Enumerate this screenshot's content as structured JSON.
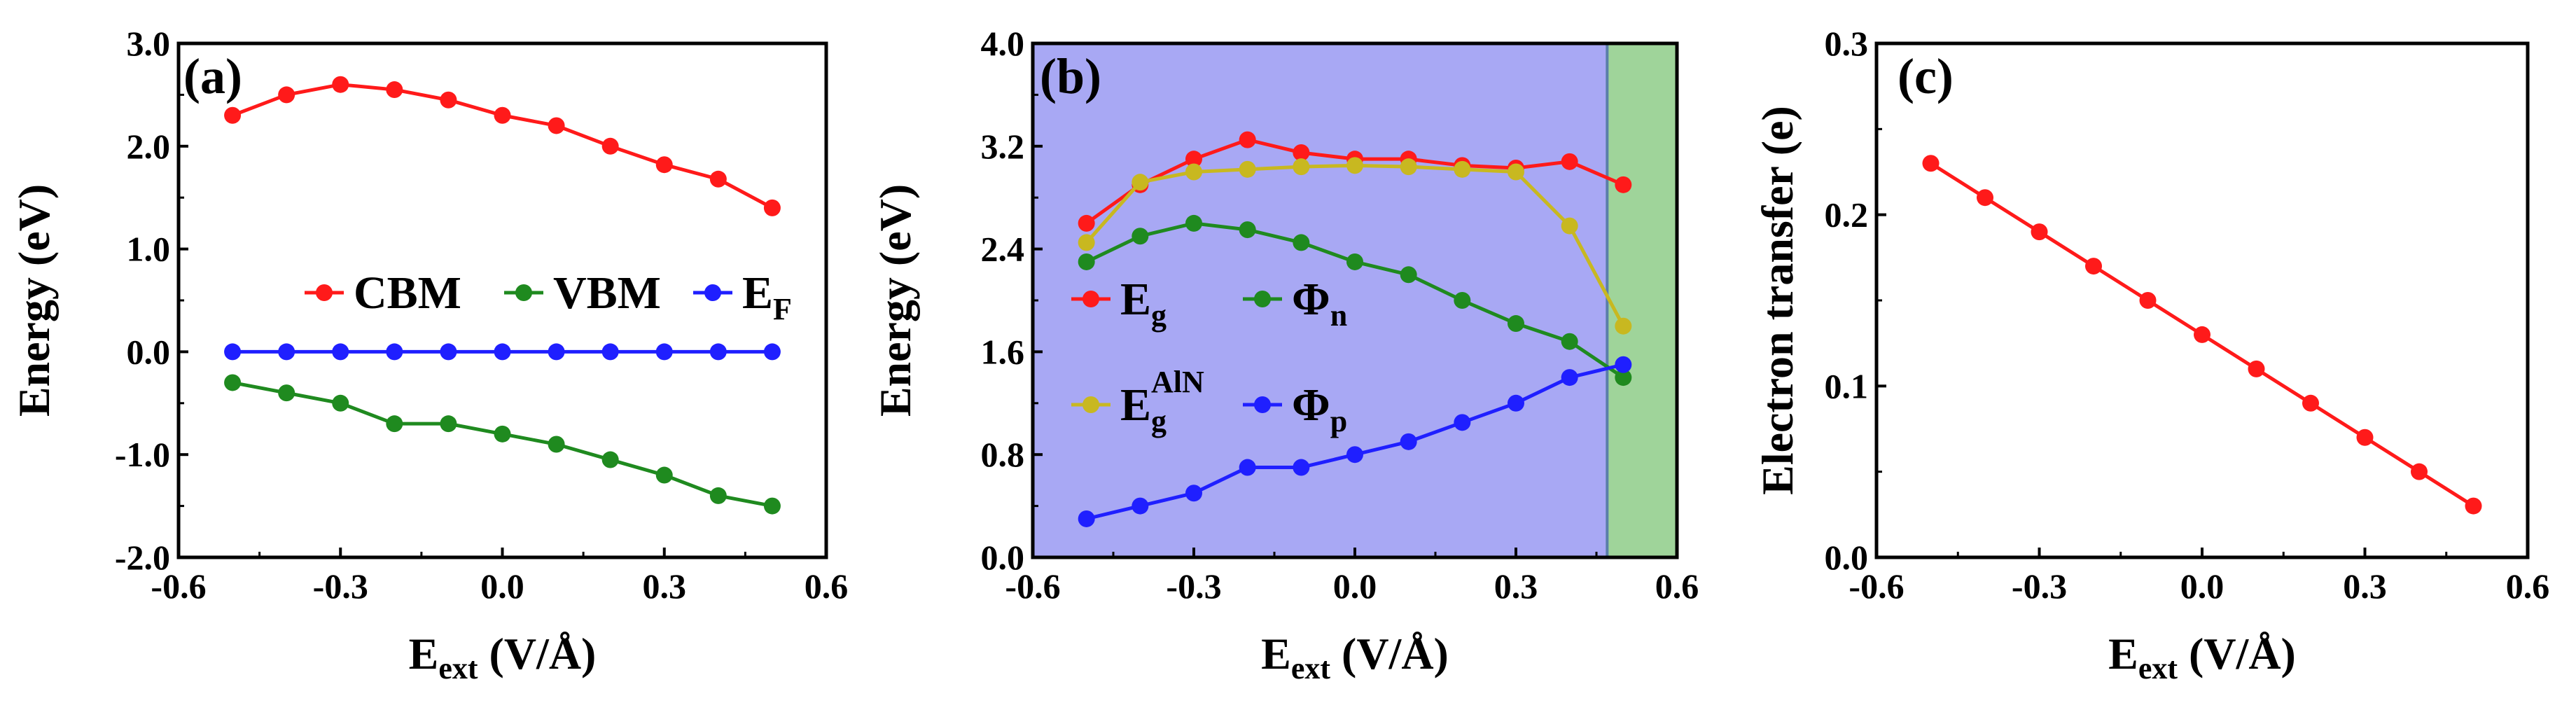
{
  "colors": {
    "red": "#ff1a1a",
    "green": "#1f8a1f",
    "blue": "#1f1fff",
    "yellow": "#c8b820",
    "shade_blue": "#a8a8f4",
    "shade_green": "#9fd49a"
  },
  "chart_data": [
    {
      "type": "line",
      "panel": "(a)",
      "xlabel": "E",
      "xlabel_sub": "ext",
      "xlabel_unit": " (V/Å)",
      "ylabel": "Energy (eV)",
      "xlim": [
        -0.6,
        0.6
      ],
      "ylim": [
        -2.0,
        3.0
      ],
      "x_ticks": [
        "-0.6",
        "-0.3",
        "0.0",
        "0.3",
        "0.6"
      ],
      "y_ticks": [
        "-2.0",
        "-1.0",
        "0.0",
        "1.0",
        "2.0",
        "3.0"
      ],
      "x": [
        -0.5,
        -0.4,
        -0.3,
        -0.2,
        -0.1,
        0.0,
        0.1,
        0.2,
        0.3,
        0.4,
        0.5
      ],
      "series": [
        {
          "name": "CBM",
          "color": "#ff1a1a",
          "values": [
            2.3,
            2.5,
            2.6,
            2.55,
            2.45,
            2.3,
            2.2,
            2.0,
            1.82,
            1.68,
            1.4
          ]
        },
        {
          "name": "VBM",
          "color": "#1f8a1f",
          "values": [
            -0.3,
            -0.4,
            -0.5,
            -0.7,
            -0.7,
            -0.8,
            -0.9,
            -1.05,
            -1.2,
            -1.4,
            -1.5
          ]
        },
        {
          "name": "E",
          "sub": "F",
          "color": "#1f1fff",
          "values": [
            0,
            0,
            0,
            0,
            0,
            0,
            0,
            0,
            0,
            0,
            0
          ]
        }
      ]
    },
    {
      "type": "line",
      "panel": "(b)",
      "xlabel": "E",
      "xlabel_sub": "ext",
      "xlabel_unit": " (V/Å)",
      "ylabel": "Energy (eV)",
      "xlim": [
        -0.6,
        0.6
      ],
      "ylim": [
        0.0,
        4.0
      ],
      "x_ticks": [
        "-0.6",
        "-0.3",
        "0.0",
        "0.3",
        "0.6"
      ],
      "y_ticks": [
        "0.0",
        "0.8",
        "1.6",
        "2.4",
        "3.2",
        "4.0"
      ],
      "shaded_regions": [
        {
          "from": -0.6,
          "to": 0.47,
          "color": "#a8a8f4"
        },
        {
          "from": 0.47,
          "to": 0.6,
          "color": "#9fd49a"
        }
      ],
      "x": [
        -0.5,
        -0.4,
        -0.3,
        -0.2,
        -0.1,
        0.0,
        0.1,
        0.2,
        0.3,
        0.4,
        0.5
      ],
      "series": [
        {
          "name": "E",
          "sub": "g",
          "color": "#ff1a1a",
          "values": [
            2.6,
            2.9,
            3.1,
            3.25,
            3.15,
            3.1,
            3.1,
            3.05,
            3.03,
            3.08,
            2.9
          ]
        },
        {
          "name": "E",
          "sub": "g",
          "sup": "AlN",
          "color": "#c8b820",
          "values": [
            2.45,
            2.92,
            3.0,
            3.02,
            3.04,
            3.05,
            3.04,
            3.02,
            3.0,
            2.58,
            1.8
          ]
        },
        {
          "name": "Φ",
          "sub": "n",
          "color": "#1f8a1f",
          "values": [
            2.3,
            2.5,
            2.6,
            2.55,
            2.45,
            2.3,
            2.2,
            2.0,
            1.82,
            1.68,
            1.4
          ]
        },
        {
          "name": "Φ",
          "sub": "p",
          "color": "#1f1fff",
          "values": [
            0.3,
            0.4,
            0.5,
            0.7,
            0.7,
            0.8,
            0.9,
            1.05,
            1.2,
            1.4,
            1.5
          ]
        }
      ]
    },
    {
      "type": "line",
      "panel": "(c)",
      "xlabel": "E",
      "xlabel_sub": "ext",
      "xlabel_unit": " (V/Å)",
      "ylabel": "Electron transfer (e)",
      "xlim": [
        -0.6,
        0.6
      ],
      "ylim": [
        0.0,
        0.3
      ],
      "x_ticks": [
        "-0.6",
        "-0.3",
        "0.0",
        "0.3",
        "0.6"
      ],
      "y_ticks": [
        "0.0",
        "0.1",
        "0.2",
        "0.3"
      ],
      "x": [
        -0.5,
        -0.4,
        -0.3,
        -0.2,
        -0.1,
        0.0,
        0.1,
        0.2,
        0.3,
        0.4,
        0.5
      ],
      "series": [
        {
          "name": "Electron transfer",
          "color": "#ff1a1a",
          "values": [
            0.23,
            0.21,
            0.19,
            0.17,
            0.15,
            0.13,
            0.11,
            0.09,
            0.07,
            0.05,
            0.03
          ]
        }
      ]
    }
  ]
}
